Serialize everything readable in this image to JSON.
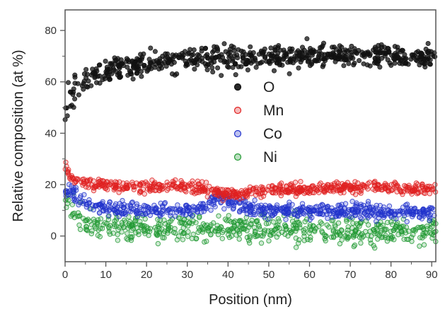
{
  "chart_data": {
    "type": "scatter",
    "title": "",
    "xlabel": "Position (nm)",
    "ylabel": "Relative composition (at %)",
    "xlim": [
      0,
      91
    ],
    "ylim": [
      -10,
      88
    ],
    "x_ticks": [
      0,
      10,
      20,
      30,
      40,
      50,
      60,
      70,
      80,
      90
    ],
    "y_ticks": [
      0,
      20,
      40,
      60,
      80
    ],
    "grid": false,
    "legend_position": "center",
    "series": [
      {
        "name": "O",
        "color": "#111111",
        "marker": "filled-circle",
        "x": [
          0,
          1,
          2,
          3,
          4,
          5,
          6,
          7,
          8,
          10,
          12,
          15,
          20,
          25,
          30,
          35,
          40,
          45,
          50,
          55,
          60,
          65,
          70,
          75,
          80,
          85,
          90
        ],
        "y": [
          50,
          55,
          57,
          58,
          59,
          60,
          61,
          62,
          63,
          64,
          65,
          66,
          67,
          68,
          69,
          69,
          69,
          69,
          70,
          70,
          70,
          70,
          70,
          70,
          70,
          70,
          70
        ]
      },
      {
        "name": "Mn",
        "color": "#e02020",
        "marker": "open-circle",
        "x": [
          0,
          2,
          5,
          10,
          20,
          30,
          35,
          38,
          40,
          45,
          50,
          60,
          70,
          80,
          90
        ],
        "y": [
          27,
          22,
          21,
          20,
          19,
          19,
          18,
          17,
          16,
          17,
          18,
          18,
          19,
          19,
          18
        ]
      },
      {
        "name": "Co",
        "color": "#2233cc",
        "marker": "open-circle",
        "x": [
          0,
          2,
          5,
          10,
          20,
          30,
          35,
          38,
          40,
          45,
          50,
          60,
          70,
          80,
          90
        ],
        "y": [
          18,
          16,
          13,
          11,
          10,
          10,
          12,
          15,
          13,
          11,
          10,
          10,
          10,
          9,
          9
        ]
      },
      {
        "name": "Ni",
        "color": "#229933",
        "marker": "open-circle",
        "x": [
          0,
          2,
          5,
          10,
          20,
          30,
          40,
          50,
          60,
          70,
          80,
          90
        ],
        "y": [
          13,
          10,
          6,
          4,
          3,
          3,
          3,
          3,
          2,
          2,
          2,
          2
        ]
      }
    ]
  }
}
